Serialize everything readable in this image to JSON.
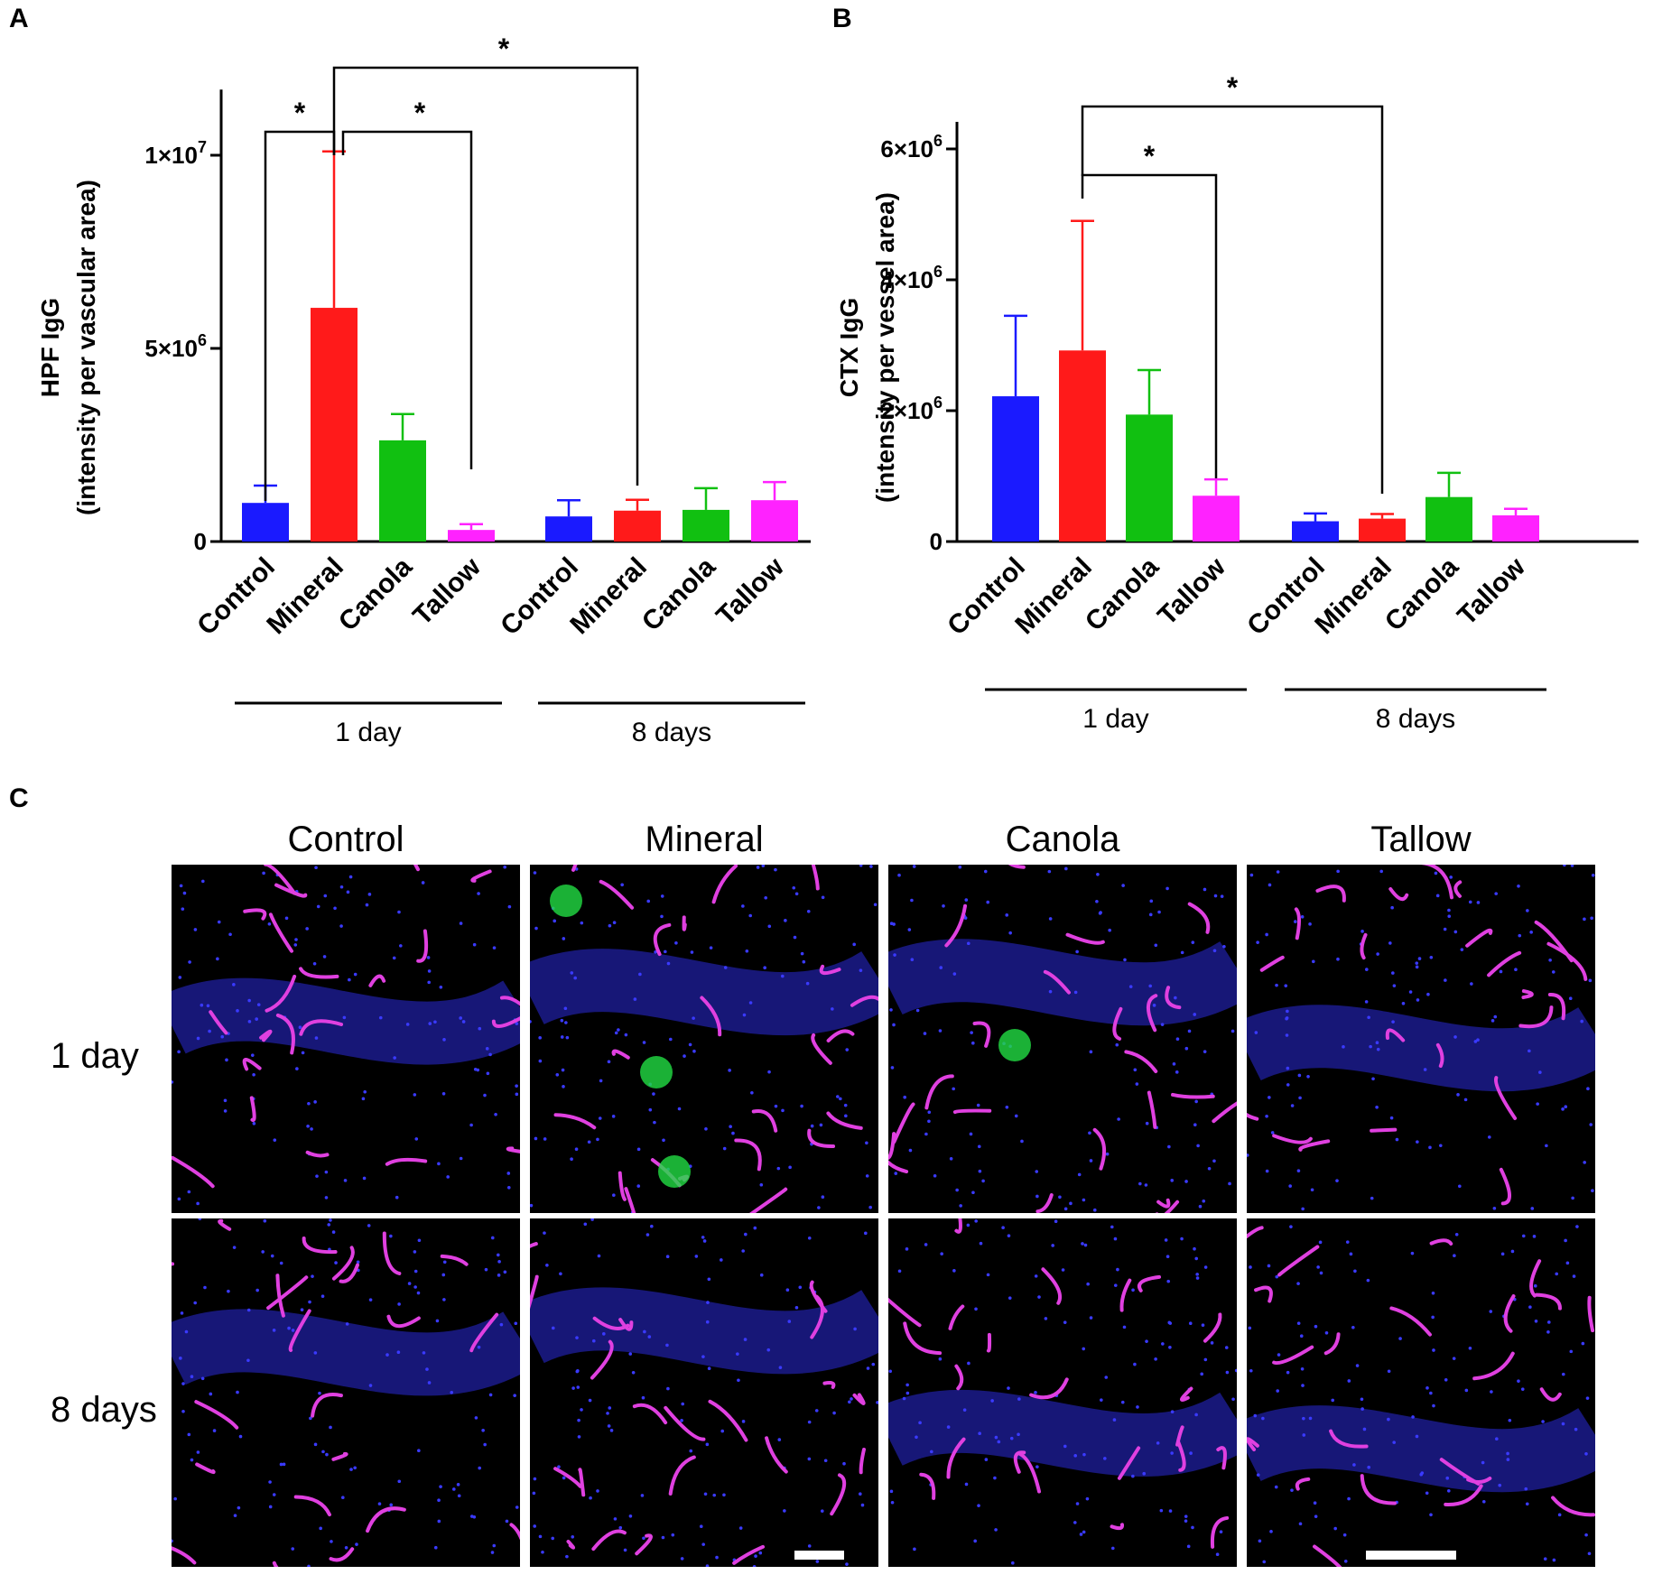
{
  "panels": {
    "a": {
      "letter": "A"
    },
    "b": {
      "letter": "B"
    },
    "c": {
      "letter": "C"
    }
  },
  "chart_data": [
    {
      "panel": "A",
      "type": "bar",
      "ylabel_line1": "HPF IgG",
      "ylabel_line2": "(intensity per vascular area)",
      "ylim": [
        0,
        11000000
      ],
      "yticks": [
        {
          "value": 0,
          "mantissa": "0",
          "exp": ""
        },
        {
          "value": 5000000,
          "mantissa": "5×10",
          "exp": "6"
        },
        {
          "value": 10000000,
          "mantissa": "1×10",
          "exp": "7"
        }
      ],
      "groups": [
        {
          "label": "1 day",
          "bars": [
            {
              "category": "Control",
              "value": 1000000,
              "error": 450000,
              "color": "#1a1aff"
            },
            {
              "category": "Mineral",
              "value": 6050000,
              "error": 4050000,
              "color": "#ff1a1a"
            },
            {
              "category": "Canola",
              "value": 2620000,
              "error": 680000,
              "color": "#11c011"
            },
            {
              "category": "Tallow",
              "value": 300000,
              "error": 150000,
              "color": "#ff22ff"
            }
          ]
        },
        {
          "label": "8 days",
          "bars": [
            {
              "category": "Control",
              "value": 650000,
              "error": 420000,
              "color": "#1a1aff"
            },
            {
              "category": "Mineral",
              "value": 800000,
              "error": 280000,
              "color": "#ff1a1a"
            },
            {
              "category": "Canola",
              "value": 820000,
              "error": 560000,
              "color": "#11c011"
            },
            {
              "category": "Tallow",
              "value": 1070000,
              "error": 470000,
              "color": "#ff22ff"
            }
          ]
        }
      ],
      "significance": [
        {
          "from": 0,
          "to": 1,
          "label": "*"
        },
        {
          "from": 1,
          "to": 3,
          "label": "*"
        },
        {
          "from": 1,
          "to": 5,
          "label": "*"
        }
      ]
    },
    {
      "panel": "B",
      "type": "bar",
      "ylabel_line1": "CTX IgG",
      "ylabel_line2": "(intensity per vessel area)",
      "ylim": [
        0,
        6000000
      ],
      "yticks": [
        {
          "value": 0,
          "mantissa": "0",
          "exp": ""
        },
        {
          "value": 2000000,
          "mantissa": "2×10",
          "exp": "6"
        },
        {
          "value": 4000000,
          "mantissa": "4×10",
          "exp": "6"
        },
        {
          "value": 6000000,
          "mantissa": "6×10",
          "exp": "6"
        }
      ],
      "groups": [
        {
          "label": "1 day",
          "bars": [
            {
              "category": "Control",
              "value": 2220000,
              "error": 1230000,
              "color": "#1a1aff"
            },
            {
              "category": "Mineral",
              "value": 2920000,
              "error": 1980000,
              "color": "#ff1a1a"
            },
            {
              "category": "Canola",
              "value": 1940000,
              "error": 680000,
              "color": "#11c011"
            },
            {
              "category": "Tallow",
              "value": 700000,
              "error": 250000,
              "color": "#ff22ff"
            }
          ]
        },
        {
          "label": "8 days",
          "bars": [
            {
              "category": "Control",
              "value": 310000,
              "error": 120000,
              "color": "#1a1aff"
            },
            {
              "category": "Mineral",
              "value": 350000,
              "error": 70000,
              "color": "#ff1a1a"
            },
            {
              "category": "Canola",
              "value": 680000,
              "error": 370000,
              "color": "#11c011"
            },
            {
              "category": "Tallow",
              "value": 400000,
              "error": 100000,
              "color": "#ff22ff"
            }
          ]
        }
      ],
      "significance": [
        {
          "from": 1,
          "to": 3,
          "label": "*"
        },
        {
          "from": 1,
          "to": 5,
          "label": "*"
        }
      ]
    }
  ],
  "micrographs": {
    "columns": [
      "Control",
      "Mineral",
      "Canola",
      "Tallow"
    ],
    "rows": [
      "1 day",
      "8 days"
    ]
  }
}
